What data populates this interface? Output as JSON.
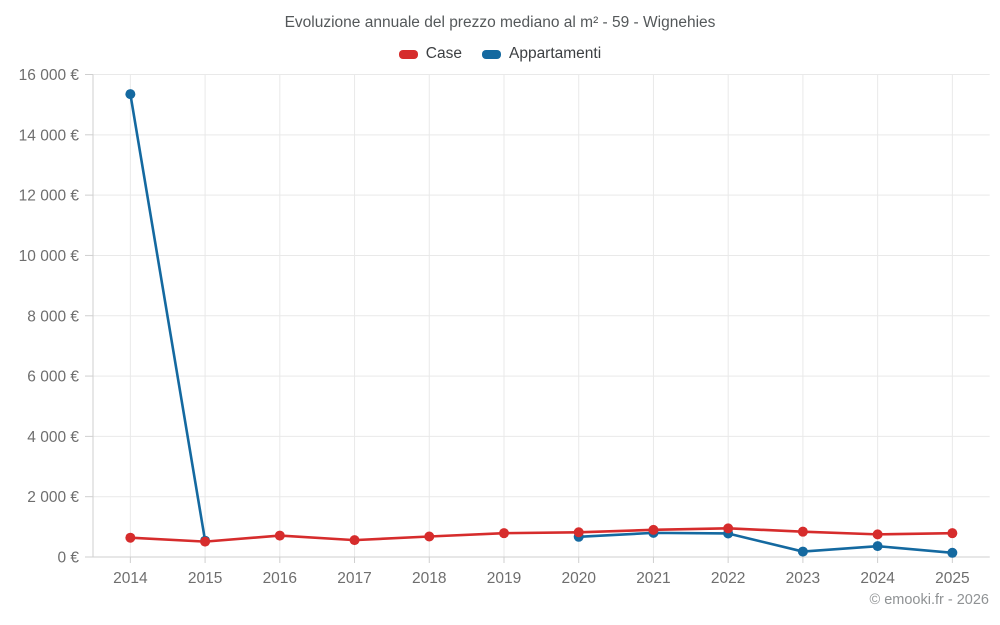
{
  "header": {
    "title": "Evoluzione annuale del prezzo mediano al m² - 59 - Wignehies"
  },
  "footer": {
    "copyright": "© emooki.fr - 2026"
  },
  "chart_data": {
    "type": "line",
    "title": "Evoluzione annuale del prezzo mediano al m² - 59 - Wignehies",
    "x": [
      "2014",
      "2015",
      "2016",
      "2017",
      "2018",
      "2019",
      "2020",
      "2021",
      "2022",
      "2023",
      "2024",
      "2025"
    ],
    "series": [
      {
        "name": "Case",
        "color": "#d62c2c",
        "values": [
          640,
          510,
          710,
          560,
          680,
          790,
          820,
          900,
          950,
          840,
          750,
          790
        ]
      },
      {
        "name": "Appartamenti",
        "color": "#1469a0",
        "values": [
          15350,
          540,
          null,
          null,
          null,
          null,
          670,
          800,
          780,
          180,
          360,
          140
        ]
      }
    ],
    "ylim": [
      0,
      16000
    ],
    "ytick_values": [
      0,
      2000,
      4000,
      6000,
      8000,
      10000,
      12000,
      14000,
      16000
    ],
    "ytick_labels": [
      "0 €",
      "2 000 €",
      "4 000 €",
      "6 000 €",
      "8 000 €",
      "10 000 €",
      "12 000 €",
      "14 000 €",
      "16 000 €"
    ],
    "xlabel": "",
    "ylabel": "",
    "grid": true,
    "legend_position": "top",
    "grid_color": "#e9e9e9",
    "axis_color": "#cfcfcf"
  }
}
